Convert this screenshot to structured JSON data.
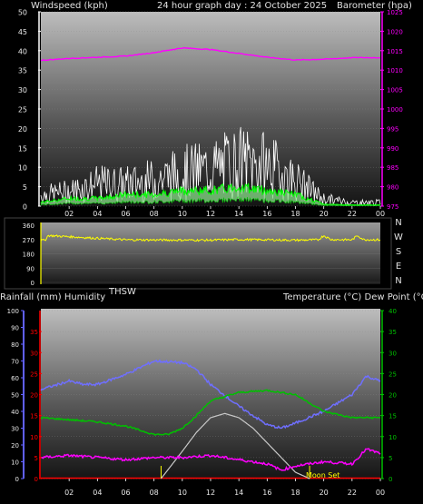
{
  "panels": {
    "wind": {
      "left_title": "Windspeed (kph)",
      "center_title": "24 hour graph day : 24 October 2025",
      "right_title": "Barometer (hpa)"
    },
    "direction": {
      "compass": [
        "N",
        "W",
        "S",
        "E",
        "N"
      ],
      "thsw_label": "THSW"
    },
    "temp": {
      "left_title": "Rainfall (mm)  Humidity",
      "right_title": "Temperature (°C) Dew Point (°C)",
      "moon_label": "Moon Set"
    }
  },
  "colors": {
    "windspeed": "#ffffff",
    "gust": "#00ff00",
    "barometer": "#ff00ff",
    "direction": "#ffff00",
    "humidity": "#6f6fff",
    "temperature": "#00c000",
    "dewpoint": "#ff00ff",
    "solar": "#c8c8c8",
    "rain": "#ff0000",
    "moon": "#ffff00",
    "left_axis_red": "#ff0000",
    "left_axis_blue": "#6060ff",
    "right_axis_green": "#00c000"
  },
  "chart_data": [
    {
      "type": "line",
      "id": "wind",
      "x_ticks": [
        "02",
        "04",
        "06",
        "08",
        "10",
        "12",
        "14",
        "16",
        "18",
        "20",
        "22",
        "00"
      ],
      "y_left_ticks": [
        "0",
        "5",
        "10",
        "15",
        "20",
        "25",
        "30",
        "35",
        "40",
        "45",
        "50"
      ],
      "y_right_ticks": [
        "975",
        "980",
        "985",
        "990",
        "995",
        "1000",
        "1005",
        "1010",
        "1015",
        "1020",
        "1025"
      ],
      "ylim_left": [
        0,
        50
      ],
      "ylim_right": [
        975,
        1025
      ],
      "series": [
        {
          "key": "barometer",
          "axis": "right",
          "x": [
            0,
            2,
            4,
            6,
            8,
            10,
            12,
            14,
            16,
            18,
            20,
            22,
            24
          ],
          "values": [
            1012.5,
            1013,
            1013.3,
            1013.6,
            1014.5,
            1015.7,
            1015.3,
            1014.3,
            1013.3,
            1012.6,
            1012.8,
            1013.2,
            1013.2
          ]
        },
        {
          "key": "windspeed",
          "axis": "left",
          "x": [
            0,
            2,
            4,
            6,
            8,
            10,
            12,
            14,
            16,
            18,
            20,
            22,
            24
          ],
          "values": [
            3,
            4,
            6,
            6,
            7,
            9,
            10,
            12,
            11,
            7,
            2,
            1,
            1
          ]
        },
        {
          "key": "gust",
          "axis": "left",
          "x": [
            0,
            2,
            4,
            6,
            8,
            10,
            12,
            14,
            16,
            18,
            20,
            22,
            24
          ],
          "values": [
            1,
            2,
            2,
            3,
            3,
            4,
            4,
            5,
            4,
            3,
            0.5,
            0.3,
            0.3
          ]
        }
      ]
    },
    {
      "type": "line",
      "id": "direction",
      "y_ticks": [
        "0",
        "90",
        "180",
        "270",
        "360"
      ],
      "ylim": [
        0,
        360
      ],
      "series": [
        {
          "key": "direction",
          "x": [
            0,
            0.3,
            0.5,
            6,
            12,
            14,
            16,
            18,
            19.6,
            20,
            20.5,
            22,
            22.4,
            22.8,
            24
          ],
          "values": [
            265,
            265,
            295,
            268,
            266,
            270,
            268,
            266,
            268,
            295,
            270,
            268,
            295,
            270,
            268
          ]
        }
      ]
    },
    {
      "type": "line",
      "id": "temp",
      "x_ticks": [
        "02",
        "04",
        "06",
        "08",
        "10",
        "12",
        "14",
        "16",
        "18",
        "20",
        "22",
        "00"
      ],
      "y_left_rain_ticks": [
        "0",
        "5",
        "10",
        "15",
        "20",
        "25",
        "30",
        "35"
      ],
      "y_left_humidity_ticks": [
        "0",
        "10",
        "20",
        "30",
        "40",
        "50",
        "60",
        "70",
        "80",
        "90",
        "100"
      ],
      "y_right_ticks": [
        "0",
        "5",
        "10",
        "15",
        "20",
        "25",
        "30",
        "35",
        "40"
      ],
      "ylim_right": [
        0,
        40
      ],
      "ylim_humidity": [
        0,
        100
      ],
      "series": [
        {
          "key": "humidity",
          "axis": "humidity",
          "x": [
            0,
            2,
            3,
            4,
            6,
            8,
            10,
            11,
            12,
            14,
            16,
            17,
            18,
            20,
            22,
            23,
            24
          ],
          "values": [
            53,
            58,
            56,
            56,
            62,
            70,
            69,
            65,
            56,
            43,
            32,
            30,
            33,
            40,
            50,
            61,
            58
          ]
        },
        {
          "key": "temperature",
          "axis": "right",
          "x": [
            0,
            2,
            4,
            6,
            8,
            9,
            10,
            11,
            12,
            14,
            16,
            18,
            20,
            22,
            24
          ],
          "values": [
            14.5,
            14,
            13.5,
            12.5,
            10.5,
            10.5,
            12,
            15,
            18.5,
            20.5,
            21,
            20,
            16,
            14.5,
            14.5
          ]
        },
        {
          "key": "dewpoint",
          "axis": "right",
          "x": [
            0,
            2,
            4,
            6,
            8,
            10,
            12,
            14,
            16,
            17,
            18,
            20,
            22,
            23,
            24
          ],
          "values": [
            5,
            5.5,
            5,
            4.5,
            5,
            5,
            5.5,
            4.5,
            3.5,
            2,
            3,
            4,
            3.5,
            7,
            6
          ]
        },
        {
          "key": "solar",
          "axis": "right",
          "x": [
            8.5,
            10,
            11,
            12,
            13,
            14,
            15,
            16,
            17,
            18,
            19
          ],
          "values": [
            0,
            6.5,
            11,
            14.5,
            15.5,
            14.5,
            12,
            8.5,
            5,
            1.5,
            0
          ]
        }
      ]
    }
  ]
}
